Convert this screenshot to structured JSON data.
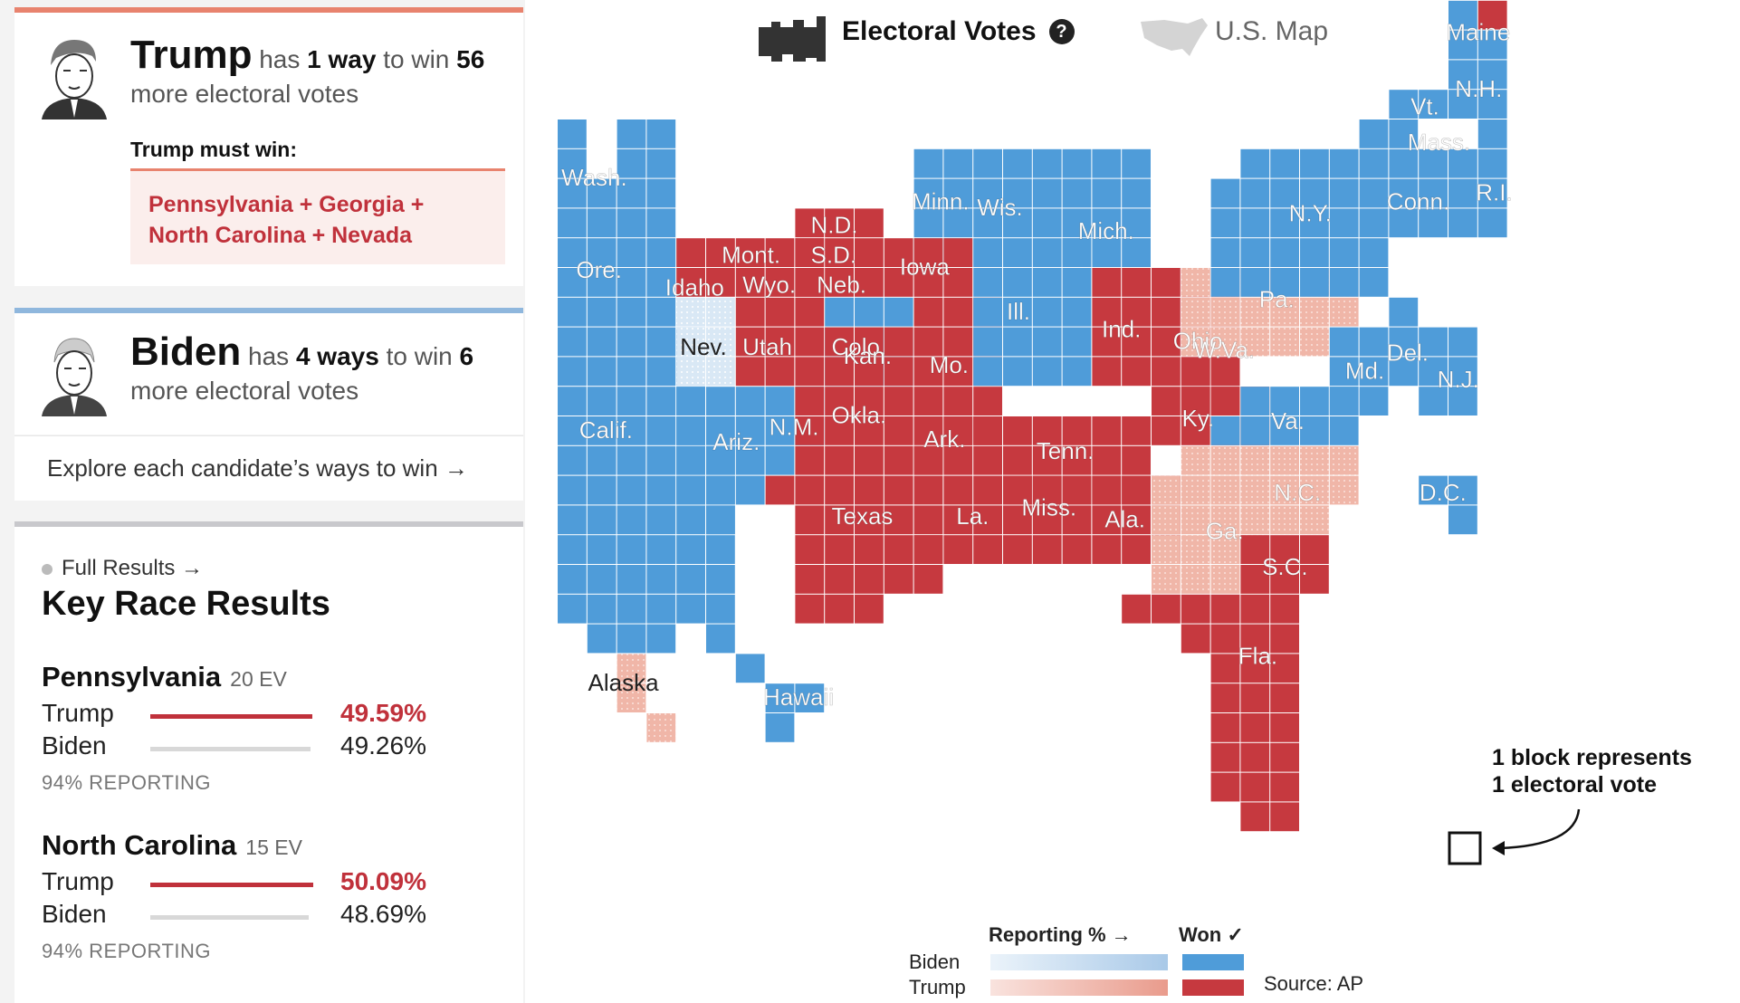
{
  "header": {
    "electoral_votes_label": "Electoral Votes",
    "help_icon": "?",
    "us_map_label": "U.S. Map"
  },
  "trump_card": {
    "name": "Trump",
    "has": "has",
    "ways": "1 way",
    "to_win": "to win",
    "votes": "56",
    "more": "more electoral votes",
    "must_win": "Trump must win:",
    "path_line1": "Pennsylvania + Georgia +",
    "path_line2": "North Carolina + Nevada"
  },
  "biden_card": {
    "name": "Biden",
    "has": "has",
    "ways": "4 ways",
    "to_win": "to win",
    "votes": "6",
    "more": "more electoral votes"
  },
  "explore": {
    "label": "Explore each candidate’s ways to win →"
  },
  "key_results": {
    "full_results": "Full Results →",
    "title": "Key Race Results",
    "races": [
      {
        "state": "Pennsylvania",
        "ev": "20 EV",
        "trump_label": "Trump",
        "trump_pct": "49.59%",
        "trump_value": 49.59,
        "biden_label": "Biden",
        "biden_pct": "49.26%",
        "biden_value": 49.26,
        "reporting": "94% REPORTING"
      },
      {
        "state": "North Carolina",
        "ev": "15 EV",
        "trump_label": "Trump",
        "trump_pct": "50.09%",
        "trump_value": 50.09,
        "biden_label": "Biden",
        "biden_pct": "48.69%",
        "biden_value": 48.69,
        "reporting": "94% REPORTING"
      }
    ]
  },
  "annotation": {
    "line1": "1 block represents",
    "line2": "1 electoral vote"
  },
  "legend": {
    "reporting": "Reporting % →",
    "won": "Won ✓",
    "biden": "Biden",
    "trump": "Trump",
    "source": "Source: AP"
  },
  "colors": {
    "biden_won": "#4f9cd9",
    "trump_won": "#c6393f",
    "trump_leading": "#f0b6a8",
    "biden_leading": "#d9e8f5",
    "trump_accent": "#e8836e",
    "biden_accent": "#8fb7dd",
    "trump_text": "#c0313b"
  },
  "states": [
    {
      "name": "Wash.",
      "result": "biden_won"
    },
    {
      "name": "Ore.",
      "result": "biden_won"
    },
    {
      "name": "Calif.",
      "result": "biden_won"
    },
    {
      "name": "Nev.",
      "result": "biden_leading"
    },
    {
      "name": "Idaho",
      "result": "trump_won"
    },
    {
      "name": "Mont.",
      "result": "trump_won"
    },
    {
      "name": "Wyo.",
      "result": "trump_won"
    },
    {
      "name": "Utah",
      "result": "trump_won"
    },
    {
      "name": "Colo.",
      "result": "biden_won"
    },
    {
      "name": "Ariz.",
      "result": "biden_won"
    },
    {
      "name": "N.M.",
      "result": "biden_won"
    },
    {
      "name": "N.D.",
      "result": "trump_won"
    },
    {
      "name": "S.D.",
      "result": "trump_won"
    },
    {
      "name": "Neb.",
      "result": "trump_won"
    },
    {
      "name": "Kan.",
      "result": "trump_won"
    },
    {
      "name": "Okla.",
      "result": "trump_won"
    },
    {
      "name": "Texas",
      "result": "trump_won"
    },
    {
      "name": "Minn.",
      "result": "biden_won"
    },
    {
      "name": "Iowa",
      "result": "trump_won"
    },
    {
      "name": "Mo.",
      "result": "trump_won"
    },
    {
      "name": "Ark.",
      "result": "trump_won"
    },
    {
      "name": "La.",
      "result": "trump_won"
    },
    {
      "name": "Wis.",
      "result": "biden_won"
    },
    {
      "name": "Ill.",
      "result": "biden_won"
    },
    {
      "name": "Mich.",
      "result": "biden_won"
    },
    {
      "name": "Ind.",
      "result": "trump_won"
    },
    {
      "name": "Ohio",
      "result": "trump_won"
    },
    {
      "name": "Ky.",
      "result": "trump_won"
    },
    {
      "name": "Tenn.",
      "result": "trump_won"
    },
    {
      "name": "Miss.",
      "result": "trump_won"
    },
    {
      "name": "Ala.",
      "result": "trump_won"
    },
    {
      "name": "Ga.",
      "result": "trump_leading"
    },
    {
      "name": "Fla.",
      "result": "trump_won"
    },
    {
      "name": "S.C.",
      "result": "trump_won"
    },
    {
      "name": "N.C.",
      "result": "trump_leading"
    },
    {
      "name": "Va.",
      "result": "biden_won"
    },
    {
      "name": "W.Va.",
      "result": "trump_won"
    },
    {
      "name": "Pa.",
      "result": "trump_leading"
    },
    {
      "name": "Md.",
      "result": "biden_won"
    },
    {
      "name": "Del.",
      "result": "biden_won"
    },
    {
      "name": "N.J.",
      "result": "biden_won"
    },
    {
      "name": "D.C.",
      "result": "biden_won"
    },
    {
      "name": "N.Y.",
      "result": "biden_won"
    },
    {
      "name": "Conn.",
      "result": "biden_won"
    },
    {
      "name": "R.I.",
      "result": "biden_won"
    },
    {
      "name": "Mass.",
      "result": "biden_won"
    },
    {
      "name": "Vt.",
      "result": "biden_won"
    },
    {
      "name": "N.H.",
      "result": "biden_won"
    },
    {
      "name": "Maine",
      "result": "biden_won"
    },
    {
      "name": "Alaska",
      "result": "trump_leading"
    },
    {
      "name": "Hawaii",
      "result": "biden_won"
    }
  ]
}
